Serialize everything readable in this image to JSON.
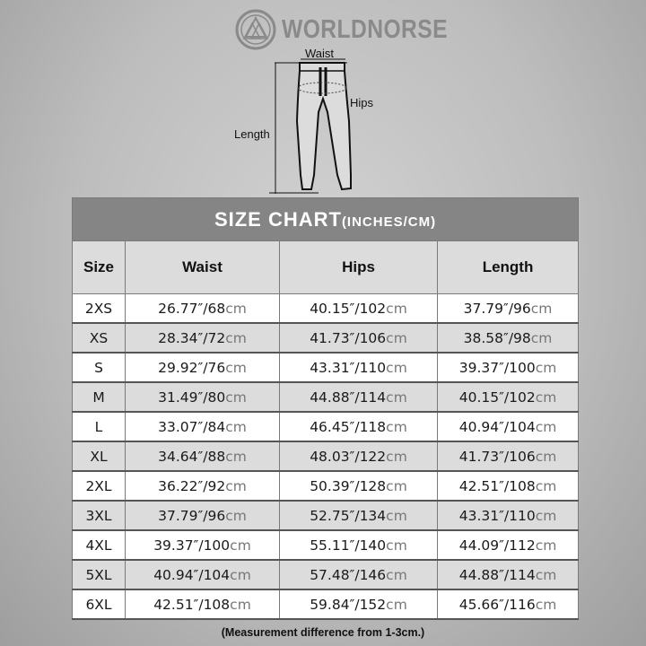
{
  "brand": {
    "name": "WORLDNORSE"
  },
  "diagram": {
    "waist_label": "Waist",
    "hips_label": "Hips",
    "length_label": "Length"
  },
  "table": {
    "title": "SIZE CHART",
    "title_units": "(INCHES/CM)",
    "unit": "cm",
    "headers": [
      "Size",
      "Waist",
      "Hips",
      "Length"
    ],
    "rows": [
      {
        "size": "2XS",
        "waist": "26.77″/68",
        "hips": "40.15″/102",
        "length": "37.79″/96"
      },
      {
        "size": "XS",
        "waist": "28.34″/72",
        "hips": "41.73″/106",
        "length": "38.58″/98"
      },
      {
        "size": "S",
        "waist": "29.92″/76",
        "hips": "43.31″/110",
        "length": "39.37″/100"
      },
      {
        "size": "M",
        "waist": "31.49″/80",
        "hips": "44.88″/114",
        "length": "40.15″/102"
      },
      {
        "size": "L",
        "waist": "33.07″/84",
        "hips": "46.45″/118",
        "length": "40.94″/104"
      },
      {
        "size": "XL",
        "waist": "34.64″/88",
        "hips": "48.03″/122",
        "length": "41.73″/106"
      },
      {
        "size": "2XL",
        "waist": "36.22″/92",
        "hips": "50.39″/128",
        "length": "42.51″/108"
      },
      {
        "size": "3XL",
        "waist": "37.79″/96",
        "hips": "52.75″/134",
        "length": "43.31″/110"
      },
      {
        "size": "4XL",
        "waist": "39.37″/100",
        "hips": "55.11″/140",
        "length": "44.09″/112"
      },
      {
        "size": "5XL",
        "waist": "40.94″/104",
        "hips": "57.48″/146",
        "length": "44.88″/114"
      },
      {
        "size": "6XL",
        "waist": "42.51″/108",
        "hips": "59.84″/152",
        "length": "45.66″/116"
      }
    ]
  },
  "footnote": "(Measurement difference from 1-3cm.)"
}
